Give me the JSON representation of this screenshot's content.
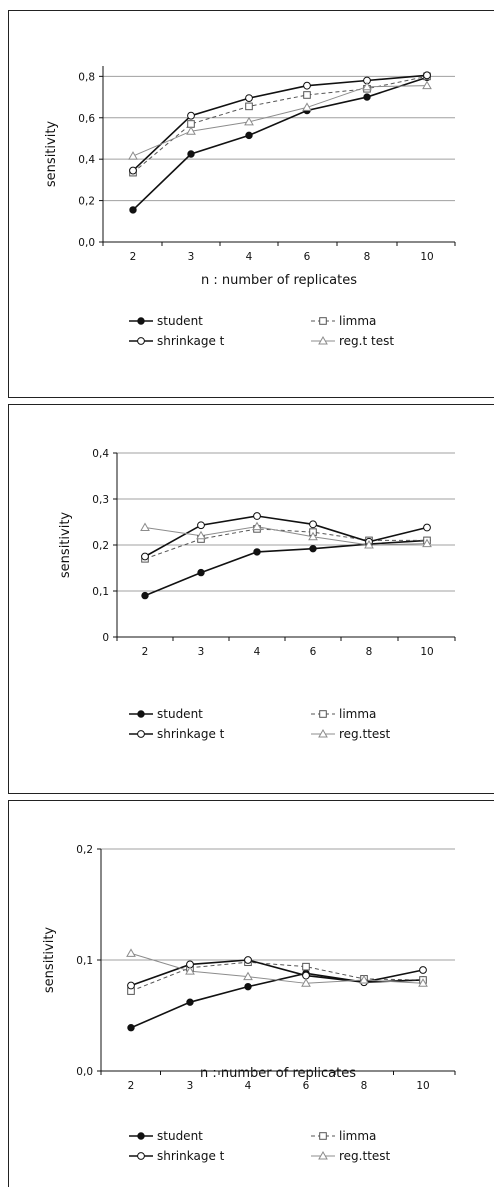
{
  "chart_data": [
    {
      "type": "line",
      "title": "",
      "xlabel": "n : number of replicates",
      "ylabel": "sensitivity",
      "categories": [
        "2",
        "3",
        "4",
        "6",
        "8",
        "10"
      ],
      "y_ticks": [
        "0,0",
        "0,2",
        "0,4",
        "0,6",
        "0,8"
      ],
      "ylim": [
        0,
        0.85
      ],
      "grid": "horizontal",
      "legend_position": "bottom",
      "series": [
        {
          "name": "student",
          "marker": "filled-circle",
          "line": "solid-dark",
          "values": [
            0.155,
            0.425,
            0.515,
            0.635,
            0.7,
            0.795
          ]
        },
        {
          "name": "limma",
          "marker": "open-square",
          "line": "dashed",
          "values": [
            0.335,
            0.57,
            0.655,
            0.71,
            0.74,
            0.8
          ]
        },
        {
          "name": "shrinkage t",
          "marker": "open-circle",
          "line": "solid-dark",
          "values": [
            0.345,
            0.61,
            0.695,
            0.755,
            0.78,
            0.805
          ]
        },
        {
          "name": "reg.t test",
          "marker": "open-triangle",
          "line": "solid-grey",
          "values": [
            0.415,
            0.535,
            0.58,
            0.65,
            0.75,
            0.755
          ]
        }
      ]
    },
    {
      "type": "line",
      "title": "",
      "xlabel": "",
      "ylabel": "sensitivity",
      "categories": [
        "2",
        "3",
        "4",
        "6",
        "8",
        "10"
      ],
      "y_ticks": [
        "0",
        "0,1",
        "0,2",
        "0,3",
        "0,4"
      ],
      "ylim": [
        0,
        0.4
      ],
      "grid": "horizontal",
      "legend_position": "bottom",
      "series": [
        {
          "name": "student",
          "marker": "filled-circle",
          "line": "solid-dark",
          "values": [
            0.09,
            0.14,
            0.185,
            0.192,
            0.202,
            0.21
          ]
        },
        {
          "name": "limma",
          "marker": "open-square",
          "line": "dashed",
          "values": [
            0.17,
            0.213,
            0.235,
            0.228,
            0.21,
            0.21
          ]
        },
        {
          "name": "shrinkage t",
          "marker": "open-circle",
          "line": "solid-dark",
          "values": [
            0.175,
            0.243,
            0.263,
            0.245,
            0.207,
            0.238
          ]
        },
        {
          "name": "reg.ttest",
          "marker": "open-triangle",
          "line": "solid-grey",
          "values": [
            0.238,
            0.22,
            0.24,
            0.218,
            0.2,
            0.203
          ]
        }
      ]
    },
    {
      "type": "line",
      "title": "",
      "xlabel": "n : number of replicates",
      "ylabel": "sensitivity",
      "categories": [
        "2",
        "3",
        "4",
        "6",
        "8",
        "10"
      ],
      "y_ticks": [
        "0,0",
        "0,1",
        "0,2"
      ],
      "ylim": [
        0,
        0.2
      ],
      "grid": "horizontal",
      "legend_position": "bottom",
      "series": [
        {
          "name": "student",
          "marker": "filled-circle",
          "line": "solid-dark",
          "values": [
            0.039,
            0.062,
            0.076,
            0.088,
            0.08,
            0.082
          ]
        },
        {
          "name": "limma",
          "marker": "open-square",
          "line": "dashed",
          "values": [
            0.072,
            0.093,
            0.098,
            0.094,
            0.083,
            0.082
          ]
        },
        {
          "name": "shrinkage t",
          "marker": "open-circle",
          "line": "solid-dark",
          "values": [
            0.077,
            0.096,
            0.1,
            0.086,
            0.08,
            0.091
          ]
        },
        {
          "name": "reg.ttest",
          "marker": "open-triangle",
          "line": "solid-grey",
          "values": [
            0.106,
            0.09,
            0.085,
            0.079,
            0.082,
            0.079
          ]
        }
      ]
    }
  ],
  "colors": {
    "dark_line": "#111111",
    "grey_line": "#8c8c8c",
    "dashed_line": "#555555",
    "gridline": "#a0a0a0",
    "background": "#ffffff"
  }
}
